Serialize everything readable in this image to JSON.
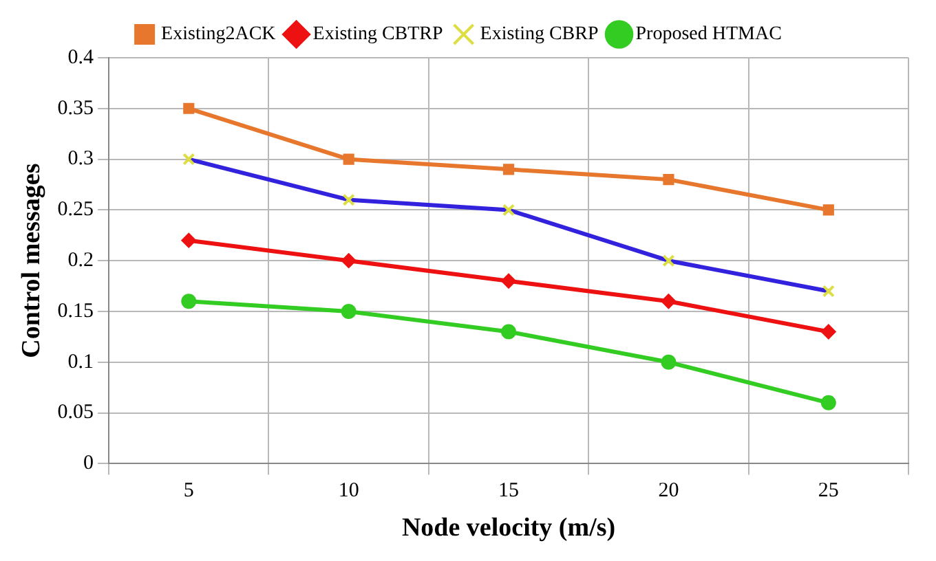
{
  "chart_data": {
    "type": "line",
    "xlabel": "Node velocity (m/s)",
    "ylabel": "Control messages",
    "categories": [
      "5",
      "10",
      "15",
      "20",
      "25"
    ],
    "series": [
      {
        "name": "Existing2ACK",
        "color": "#e8772e",
        "marker": "square",
        "values": [
          0.35,
          0.3,
          0.29,
          0.28,
          0.25
        ]
      },
      {
        "name": "Existing CBTRP",
        "color": "#ee1111",
        "marker": "diamond",
        "values": [
          0.22,
          0.2,
          0.18,
          0.16,
          0.13
        ]
      },
      {
        "name": "Existing CBRP",
        "color": "#3322dd",
        "marker": "cross",
        "values": [
          0.3,
          0.26,
          0.25,
          0.2,
          0.17
        ]
      },
      {
        "name": "Proposed HTMAC",
        "color": "#33cc22",
        "marker": "circle",
        "values": [
          0.16,
          0.15,
          0.13,
          0.1,
          0.06
        ]
      }
    ],
    "ylim": [
      0,
      0.4
    ],
    "yticks": [
      0,
      0.05,
      0.1,
      0.15,
      0.2,
      0.25,
      0.3,
      0.35,
      0.4
    ],
    "grid": true,
    "legend": "top",
    "line_style": "solid"
  }
}
